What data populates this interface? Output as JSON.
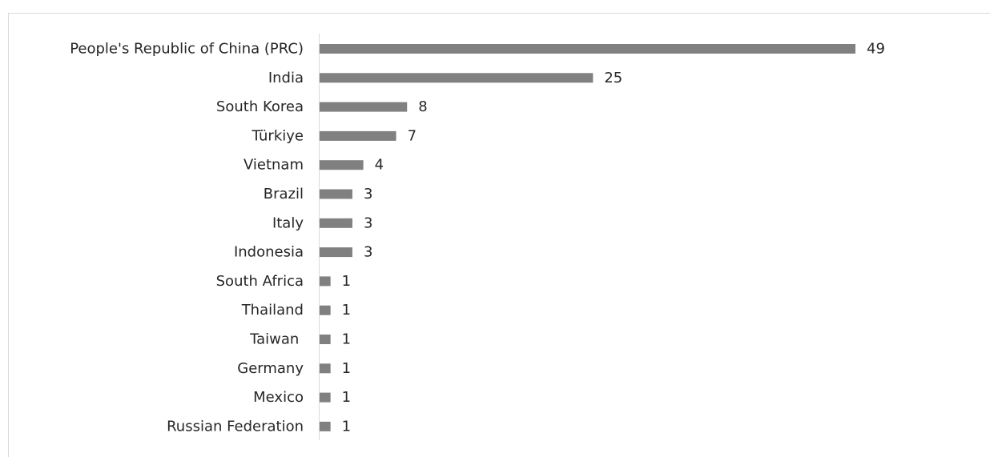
{
  "chart_data": {
    "type": "bar",
    "orientation": "horizontal",
    "categories": [
      "People's Republic of China (PRC)",
      "India",
      "South Korea",
      "Türkiye",
      "Vietnam",
      "Brazil",
      "Italy",
      "Indonesia",
      "South Africa",
      "Thailand",
      "Taiwan ",
      "Germany",
      "Mexico",
      "Russian Federation"
    ],
    "values": [
      49,
      25,
      8,
      7,
      4,
      3,
      3,
      3,
      1,
      1,
      1,
      1,
      1,
      1
    ],
    "title": "",
    "xlabel": "",
    "ylabel": "",
    "xlim": [
      0,
      49
    ],
    "grid": false,
    "legend": "none",
    "data_labels": true,
    "colors": {
      "bar": "#808080",
      "axis": "#d9d9d9",
      "text": "#262626",
      "frame": "#d9d9d9"
    }
  }
}
